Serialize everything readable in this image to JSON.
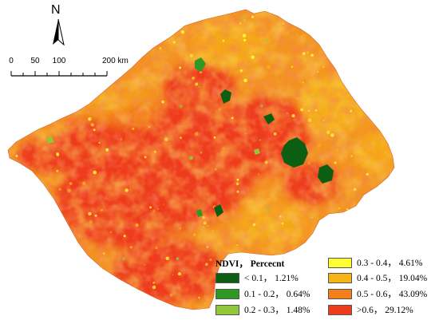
{
  "north_arrow": {
    "letter": "N"
  },
  "scale_bar": {
    "labels": [
      "0",
      "50",
      "100",
      "200 km"
    ],
    "ticks_km": [
      0,
      50,
      100,
      200
    ]
  },
  "legend": {
    "title": "NDVI， Percecnt",
    "items": [
      {
        "range": "< 0.1， 1.21%",
        "color": "#0b5e12"
      },
      {
        "range": "0.1 - 0.2， 0.64%",
        "color": "#2e9a23"
      },
      {
        "range": "0.2 - 0.3， 1.48%",
        "color": "#93c73a"
      },
      {
        "range": "0.3 - 0.4， 4.61%",
        "color": "#ffff33"
      },
      {
        "range": "0.4 - 0.5， 19.04%",
        "color": "#f6b416"
      },
      {
        "range": "0.5 - 0.6， 43.09%",
        "color": "#f57f1a"
      },
      {
        "range": ">0.6， 29.12%",
        "color": "#ee3b1c"
      }
    ]
  },
  "map_colors": {
    "base": "#f39322",
    "high": "#ee3b1c",
    "mid": "#f6b416",
    "yellow": "#ffff33",
    "green_dark": "#0b5e12",
    "green_mid": "#2e9a23",
    "green_light": "#93c73a"
  }
}
